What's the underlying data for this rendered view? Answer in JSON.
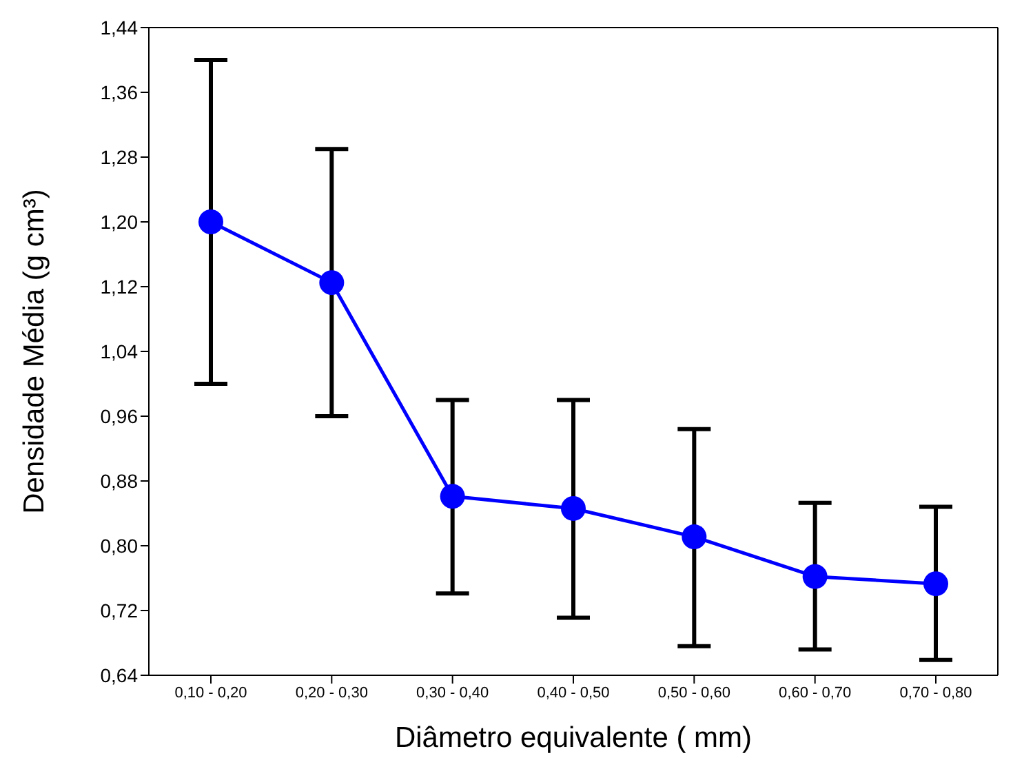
{
  "chart_data": {
    "type": "line",
    "xlabel": "Diâmetro equivalente  ( mm)",
    "ylabel": "Densidade Média (g cm³)",
    "categories": [
      "0,10 - 0,20",
      "0,20 - 0,30",
      "0,30 - 0,40",
      "0,40 - 0,50",
      "0,50 - 0,60",
      "0,60 - 0,70",
      "0,70 - 0,80"
    ],
    "series": [
      {
        "color": "#0000ff",
        "values": [
          1.2,
          1.125,
          0.861,
          0.846,
          0.811,
          0.762,
          0.753
        ],
        "errors": [
          [
            1.0,
            1.4
          ],
          [
            0.96,
            1.29
          ],
          [
            0.741,
            0.98
          ],
          [
            0.711,
            0.98
          ],
          [
            0.676,
            0.944
          ],
          [
            0.672,
            0.853
          ],
          [
            0.659,
            0.848
          ]
        ]
      }
    ],
    "ylim": [
      0.64,
      1.44
    ],
    "yticks": [
      {
        "value": 0.64,
        "label": "0,64"
      },
      {
        "value": 0.72,
        "label": "0,72"
      },
      {
        "value": 0.8,
        "label": "0,80"
      },
      {
        "value": 0.88,
        "label": "0,88"
      },
      {
        "value": 0.96,
        "label": "0,96"
      },
      {
        "value": 1.04,
        "label": "1,04"
      },
      {
        "value": 1.12,
        "label": "1,12"
      },
      {
        "value": 1.2,
        "label": "1,20"
      },
      {
        "value": 1.28,
        "label": "1,28"
      },
      {
        "value": 1.36,
        "label": "1,36"
      },
      {
        "value": 1.44,
        "label": "1,44"
      }
    ],
    "marker": "circle",
    "line_style": "solid"
  }
}
